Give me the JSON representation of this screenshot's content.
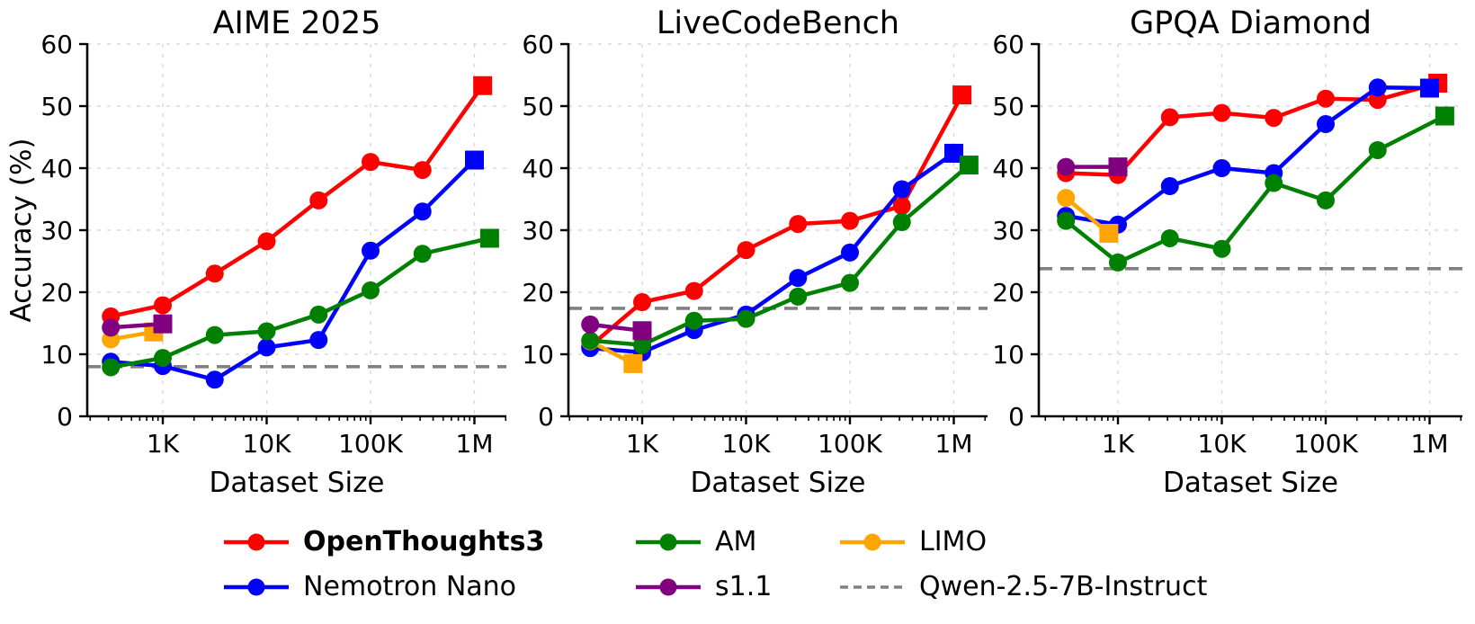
{
  "figure": {
    "background": "#ffffff"
  },
  "axis": {
    "ylabel": "Accuracy (%)",
    "xlabel": "Dataset Size",
    "yticks": [
      0,
      10,
      20,
      30,
      40,
      50,
      60
    ],
    "xtick_labels": [
      "1K",
      "10K",
      "100K",
      "1M"
    ],
    "xtick_values": [
      1000,
      10000,
      100000,
      1000000
    ],
    "ylim": [
      0,
      60
    ]
  },
  "colors": {
    "openthoughts3": "#ff0000",
    "nemotron_nano": "#0000ff",
    "am": "#008000",
    "s1_1": "#800080",
    "limo": "#ffa500",
    "qwen_baseline": "#808080",
    "gridline": "#d8d8d8"
  },
  "legend": {
    "items": [
      {
        "label": "OpenThoughts3",
        "color": "#ff0000",
        "bold": true,
        "style": "line-circle"
      },
      {
        "label": "Nemotron Nano",
        "color": "#0000ff",
        "bold": false,
        "style": "line-circle"
      },
      {
        "label": "AM",
        "color": "#008000",
        "bold": false,
        "style": "line-circle"
      },
      {
        "label": "s1.1",
        "color": "#800080",
        "bold": false,
        "style": "line-circle"
      },
      {
        "label": "LIMO",
        "color": "#ffa500",
        "bold": false,
        "style": "line-circle"
      },
      {
        "label": "Qwen-2.5-7B-Instruct",
        "color": "#808080",
        "bold": false,
        "style": "dashed-line"
      }
    ]
  },
  "chart_data": [
    {
      "type": "line",
      "title": "AIME 2025",
      "xlabel": "Dataset Size",
      "ylabel": "Accuracy (%)",
      "xscale": "log",
      "ylim": [
        0,
        60
      ],
      "grid": true,
      "xticks": [
        1000,
        10000,
        100000,
        1000000
      ],
      "xtick_labels": [
        "1K",
        "10K",
        "100K",
        "1M"
      ],
      "yticks": [
        0,
        10,
        20,
        30,
        40,
        50,
        60
      ],
      "series": [
        {
          "name": "OpenThoughts3",
          "color": "#ff0000",
          "end_marker": "square",
          "x": [
            316,
            1000,
            3162,
            10000,
            31623,
            100000,
            316228,
            1200000
          ],
          "y": [
            16.1,
            17.9,
            23.0,
            28.2,
            34.8,
            41.0,
            39.7,
            53.3
          ]
        },
        {
          "name": "Nemotron Nano",
          "color": "#0000ff",
          "end_marker": "square",
          "x": [
            316,
            1000,
            3162,
            10000,
            31623,
            100000,
            316228,
            1000000
          ],
          "y": [
            8.8,
            8.1,
            5.9,
            11.1,
            12.3,
            26.7,
            33.0,
            41.3
          ]
        },
        {
          "name": "AM",
          "color": "#008000",
          "end_marker": "square",
          "x": [
            316,
            1000,
            3162,
            10000,
            31623,
            100000,
            316228,
            1400000
          ],
          "y": [
            7.9,
            9.4,
            13.1,
            13.7,
            16.4,
            20.3,
            26.2,
            28.7
          ]
        },
        {
          "name": "s1.1",
          "color": "#800080",
          "end_marker": "square",
          "x": [
            316,
            1000
          ],
          "y": [
            14.3,
            14.9
          ]
        },
        {
          "name": "LIMO",
          "color": "#ffa500",
          "end_marker": "square",
          "x": [
            316,
            817
          ],
          "y": [
            12.4,
            13.6
          ]
        }
      ],
      "baseline": {
        "name": "Qwen-2.5-7B-Instruct",
        "value": 8.0,
        "color": "#808080"
      }
    },
    {
      "type": "line",
      "title": "LiveCodeBench",
      "xlabel": "Dataset Size",
      "xscale": "log",
      "ylim": [
        0,
        60
      ],
      "grid": true,
      "xticks": [
        1000,
        10000,
        100000,
        1000000
      ],
      "xtick_labels": [
        "1K",
        "10K",
        "100K",
        "1M"
      ],
      "yticks": [
        0,
        10,
        20,
        30,
        40,
        50,
        60
      ],
      "series": [
        {
          "name": "OpenThoughts3",
          "color": "#ff0000",
          "end_marker": "square",
          "x": [
            316,
            1000,
            3162,
            10000,
            31623,
            100000,
            316228,
            1200000
          ],
          "y": [
            11.3,
            18.4,
            20.2,
            26.8,
            31.0,
            31.5,
            33.9,
            51.8
          ]
        },
        {
          "name": "Nemotron Nano",
          "color": "#0000ff",
          "end_marker": "square",
          "x": [
            316,
            1000,
            3162,
            10000,
            31623,
            100000,
            316228,
            1000000
          ],
          "y": [
            11.0,
            10.3,
            13.9,
            16.4,
            22.3,
            26.4,
            36.6,
            42.4
          ]
        },
        {
          "name": "AM",
          "color": "#008000",
          "end_marker": "square",
          "x": [
            316,
            1000,
            3162,
            10000,
            31623,
            100000,
            316228,
            1400000
          ],
          "y": [
            12.2,
            11.5,
            15.4,
            15.7,
            19.3,
            21.5,
            31.3,
            40.5
          ]
        },
        {
          "name": "s1.1",
          "color": "#800080",
          "end_marker": "square",
          "x": [
            316,
            1000
          ],
          "y": [
            14.8,
            13.8
          ]
        },
        {
          "name": "LIMO",
          "color": "#ffa500",
          "end_marker": "square",
          "x": [
            316,
            817
          ],
          "y": [
            12.1,
            8.5
          ]
        }
      ],
      "baseline": {
        "name": "Qwen-2.5-7B-Instruct",
        "value": 17.4,
        "color": "#808080"
      }
    },
    {
      "type": "line",
      "title": "GPQA Diamond",
      "xlabel": "Dataset Size",
      "xscale": "log",
      "ylim": [
        0,
        60
      ],
      "grid": true,
      "xticks": [
        1000,
        10000,
        100000,
        1000000
      ],
      "xtick_labels": [
        "1K",
        "10K",
        "100K",
        "1M"
      ],
      "yticks": [
        0,
        10,
        20,
        30,
        40,
        50,
        60
      ],
      "series": [
        {
          "name": "OpenThoughts3",
          "color": "#ff0000",
          "end_marker": "square",
          "x": [
            316,
            1000,
            3162,
            10000,
            31623,
            100000,
            316228,
            1200000
          ],
          "y": [
            39.2,
            38.9,
            48.2,
            48.9,
            48.1,
            51.2,
            51.0,
            53.7
          ]
        },
        {
          "name": "Nemotron Nano",
          "color": "#0000ff",
          "end_marker": "square",
          "x": [
            316,
            1000,
            3162,
            10000,
            31623,
            100000,
            316228,
            1000000
          ],
          "y": [
            32.3,
            30.9,
            37.1,
            40.0,
            39.2,
            47.1,
            53.0,
            52.9
          ]
        },
        {
          "name": "AM",
          "color": "#008000",
          "end_marker": "square",
          "x": [
            316,
            1000,
            3162,
            10000,
            31623,
            100000,
            316228,
            1400000
          ],
          "y": [
            31.5,
            24.8,
            28.7,
            27.0,
            37.6,
            34.8,
            42.9,
            48.4
          ]
        },
        {
          "name": "s1.1",
          "color": "#800080",
          "end_marker": "square",
          "x": [
            316,
            1000
          ],
          "y": [
            40.2,
            40.2
          ]
        },
        {
          "name": "LIMO",
          "color": "#ffa500",
          "end_marker": "square",
          "x": [
            316,
            817
          ],
          "y": [
            35.2,
            29.5
          ]
        }
      ],
      "baseline": {
        "name": "Qwen-2.5-7B-Instruct",
        "value": 23.8,
        "color": "#808080"
      }
    }
  ]
}
